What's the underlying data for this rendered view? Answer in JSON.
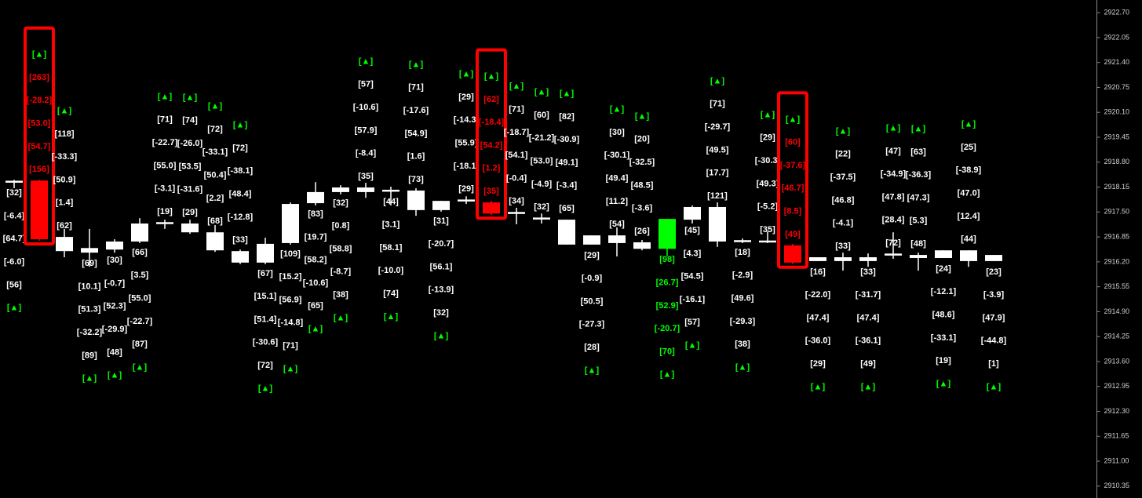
{
  "chart_data": {
    "type": "candlestick",
    "ylim": [
      2910.04,
      2923.03
    ],
    "yticks": [
      {
        "value": 2922.7,
        "label": "2922.70"
      },
      2922.05,
      {
        "value": 2921.4,
        "label": "2921.40"
      },
      2920.75,
      {
        "value": 2920.1,
        "label": "2920.10"
      },
      2919.45,
      {
        "value": 2918.8,
        "label": "2918.80"
      },
      2918.15,
      {
        "value": 2917.5,
        "label": "2917.50"
      },
      2916.85,
      {
        "value": 2916.2,
        "label": "2916.20"
      },
      2915.55,
      {
        "value": 2914.9,
        "label": "2914.90"
      },
      2914.25,
      {
        "value": 2913.6,
        "label": "2913.60"
      },
      2912.95,
      {
        "value": 2912.3,
        "label": "2912.30"
      },
      2911.65,
      {
        "value": 2911.0,
        "label": "2911.00"
      },
      2910.35
    ],
    "body_color": "#ffffff",
    "label_color": "#ffffff",
    "arrow_label": "[▲]",
    "arrow_color": "#00ff00",
    "highlight_color": "#ff0000",
    "candles": [
      {
        "o": 2918.28,
        "h": 2918.34,
        "l": 2918.12,
        "c": 2918.3,
        "side": "below",
        "labels": [
          "[32]",
          "[-6.4]",
          "[64.7]",
          "[-6.0]",
          "[56]"
        ]
      },
      {
        "o": 2918.32,
        "h": 2918.34,
        "l": 2916.75,
        "c": 2916.79,
        "side": "above",
        "color": "#ff0000",
        "label_color": "#ff0000",
        "highlight": true,
        "labels": [
          "[156]",
          "[54.7]",
          "[53.0]",
          "[-28.2]",
          "[263]"
        ]
      },
      {
        "o": 2916.48,
        "h": 2917.06,
        "l": 2916.32,
        "c": 2916.85,
        "side": "above",
        "labels": [
          "[62]",
          "[1.4]",
          "[50.9]",
          "[-33.3]",
          "[118]"
        ]
      },
      {
        "o": 2916.44,
        "h": 2917.06,
        "l": 2916.07,
        "c": 2916.56,
        "side": "below",
        "labels": [
          "[69]",
          "[10.1]",
          "[51.3]",
          "[-32.2]",
          "[89]"
        ]
      },
      {
        "o": 2916.52,
        "h": 2916.79,
        "l": 2916.44,
        "c": 2916.73,
        "side": "below",
        "labels": [
          "[30]",
          "[-0.7]",
          "[52.3]",
          "[-29.9]",
          "[48]"
        ]
      },
      {
        "o": 2916.73,
        "h": 2917.34,
        "l": 2916.69,
        "c": 2917.2,
        "side": "below",
        "labels": [
          "[66]",
          "[3.5]",
          "[55.0]",
          "[-22.7]",
          "[87]"
        ]
      },
      {
        "o": 2917.2,
        "h": 2917.3,
        "l": 2917.06,
        "c": 2917.22,
        "side": "above",
        "labels": [
          "[19]",
          "[-3.1]",
          "[55.0]",
          "[-22.7]",
          "[71]"
        ]
      },
      {
        "o": 2916.97,
        "h": 2917.3,
        "l": 2916.93,
        "c": 2917.2,
        "side": "above",
        "labels": [
          "[29]",
          "[-31.6]",
          "[53.5]",
          "[-26.0]",
          "[74]"
        ]
      },
      {
        "o": 2916.5,
        "h": 2917.16,
        "l": 2916.46,
        "c": 2916.97,
        "side": "above",
        "labels": [
          "[68]",
          "[2.2]",
          "[50.4]",
          "[-33.1]",
          "[72]"
        ]
      },
      {
        "o": 2916.18,
        "h": 2916.52,
        "l": 2916.14,
        "c": 2916.48,
        "side": "above",
        "labels": [
          "[33]",
          "[-12.8]",
          "[48.4]",
          "[-38.1]",
          "[72]"
        ]
      },
      {
        "o": 2916.18,
        "h": 2916.83,
        "l": 2916.14,
        "c": 2916.67,
        "side": "below",
        "labels": [
          "[67]",
          "[15.1]",
          "[51.4]",
          "[-30.6]",
          "[72]"
        ]
      },
      {
        "o": 2916.69,
        "h": 2917.75,
        "l": 2916.65,
        "c": 2917.71,
        "side": "below",
        "labels": [
          "[109]",
          "[15.2]",
          "[56.9]",
          "[-14.8]",
          "[71]"
        ]
      },
      {
        "o": 2917.73,
        "h": 2918.28,
        "l": 2917.67,
        "c": 2918.02,
        "side": "below",
        "labels": [
          "[83]",
          "[19.7]",
          "[58.2]",
          "[-10.6]",
          "[65]"
        ]
      },
      {
        "o": 2918.02,
        "h": 2918.2,
        "l": 2917.96,
        "c": 2918.14,
        "side": "below",
        "labels": [
          "[32]",
          "[0.8]",
          "[58.8]",
          "[-8.7]",
          "[38]"
        ]
      },
      {
        "o": 2918.02,
        "h": 2918.26,
        "l": 2917.87,
        "c": 2918.14,
        "side": "above",
        "labels": [
          "[35]",
          "[-8.4]",
          "[57.9]",
          "[-10.6]",
          "[57]"
        ]
      },
      {
        "o": 2918.05,
        "h": 2918.16,
        "l": 2917.67,
        "c": 2918.06,
        "side": "below",
        "labels": [
          "[44]",
          "[3.1]",
          "[58.1]",
          "[-10.0]",
          "[74]"
        ]
      },
      {
        "o": 2917.55,
        "h": 2918.12,
        "l": 2917.4,
        "c": 2918.06,
        "side": "above",
        "labels": [
          "[73]",
          "[1.6]",
          "[54.9]",
          "[-17.6]",
          "[71]"
        ]
      },
      {
        "o": 2917.55,
        "h": 2917.79,
        "l": 2917.51,
        "c": 2917.79,
        "side": "below",
        "labels": [
          "[31]",
          "[-20.7]",
          "[56.1]",
          "[-13.9]",
          "[32]"
        ]
      },
      {
        "o": 2917.79,
        "h": 2917.91,
        "l": 2917.71,
        "c": 2917.81,
        "side": "above",
        "labels": [
          "[29]",
          "[-18.1]",
          "[55.9]",
          "[-14.3]",
          "[29]"
        ]
      },
      {
        "o": 2917.75,
        "h": 2917.79,
        "l": 2917.42,
        "c": 2917.46,
        "side": "above",
        "color": "#ff0000",
        "label_color": "#ff0000",
        "highlight": true,
        "labels": [
          "[35]",
          "[1.2]",
          "[54.2]",
          "[-18.4]",
          "[62]"
        ]
      },
      {
        "o": 2917.46,
        "h": 2917.61,
        "l": 2917.18,
        "c": 2917.49,
        "side": "above",
        "labels": [
          "[34]",
          "[-0.4]",
          "[54.1]",
          "[-18.7]",
          "[71]"
        ]
      },
      {
        "o": 2917.32,
        "h": 2917.46,
        "l": 2917.2,
        "c": 2917.34,
        "side": "above",
        "labels": [
          "[32]",
          "[-4.9]",
          "[53.0]",
          "[-21.2]",
          "[60]"
        ]
      },
      {
        "o": 2916.65,
        "h": 2917.3,
        "l": 2916.65,
        "c": 2917.3,
        "side": "above",
        "labels": [
          "[65]",
          "[-3.4]",
          "[49.1]",
          "[-30.9]",
          "[82]"
        ]
      },
      {
        "o": 2916.65,
        "h": 2916.89,
        "l": 2916.65,
        "c": 2916.89,
        "side": "below",
        "labels": [
          "[29]",
          "[-0.9]",
          "[50.5]",
          "[-27.3]",
          "[28]"
        ]
      },
      {
        "o": 2916.69,
        "h": 2917.1,
        "l": 2916.34,
        "c": 2916.89,
        "side": "above",
        "labels": [
          "[54]",
          "[11.2]",
          "[49.4]",
          "[-30.1]",
          "[30]"
        ]
      },
      {
        "o": 2916.54,
        "h": 2916.77,
        "l": 2916.5,
        "c": 2916.71,
        "side": "above",
        "labels": [
          "[26]",
          "[-3.6]",
          "[48.5]",
          "[-32.5]",
          "[20]"
        ]
      },
      {
        "o": 2916.54,
        "h": 2917.32,
        "l": 2916.34,
        "c": 2917.32,
        "side": "below",
        "color": "#00ff00",
        "label_color": "#00ff00",
        "labels": [
          "[98]",
          "[26.7]",
          "[52.9]",
          "[-20.7]",
          "[70]"
        ]
      },
      {
        "o": 2917.3,
        "h": 2917.67,
        "l": 2917.2,
        "c": 2917.63,
        "side": "below",
        "labels": [
          "[45]",
          "[4.3]",
          "[54.5]",
          "[-16.1]",
          "[57]"
        ]
      },
      {
        "o": 2916.73,
        "h": 2917.75,
        "l": 2916.59,
        "c": 2917.63,
        "side": "above",
        "labels": [
          "[121]",
          "[17.7]",
          "[49.5]",
          "[-29.7]",
          "[71]"
        ]
      },
      {
        "o": 2916.73,
        "h": 2916.81,
        "l": 2916.69,
        "c": 2916.75,
        "side": "below",
        "labels": [
          "[18]",
          "[-2.9]",
          "[49.6]",
          "[-29.3]",
          "[38]"
        ]
      },
      {
        "o": 2916.71,
        "h": 2916.99,
        "l": 2916.69,
        "c": 2916.75,
        "side": "above",
        "labels": [
          "[35]",
          "[-5.2]",
          "[49.3]",
          "[-30.3]",
          "[29]"
        ]
      },
      {
        "o": 2916.63,
        "h": 2916.67,
        "l": 2916.14,
        "c": 2916.18,
        "side": "above",
        "color": "#ff0000",
        "label_color": "#ff0000",
        "highlight": true,
        "labels": [
          "[49]",
          "[8.5]",
          "[46.7]",
          "[-37.6]",
          "[60]"
        ]
      },
      {
        "o": 2916.22,
        "h": 2916.32,
        "l": 2916.22,
        "c": 2916.32,
        "side": "below",
        "labels": [
          "[16]",
          "[-22.0]",
          "[47.4]",
          "[-36.0]",
          "[29]"
        ]
      },
      {
        "o": 2916.22,
        "h": 2916.44,
        "l": 2915.97,
        "c": 2916.32,
        "side": "above",
        "labels": [
          "[33]",
          "[-4.1]",
          "[46.8]",
          "[-37.5]",
          "[22]"
        ]
      },
      {
        "o": 2916.22,
        "h": 2916.42,
        "l": 2916.07,
        "c": 2916.32,
        "side": "below",
        "labels": [
          "[33]",
          "[-31.7]",
          "[47.4]",
          "[-36.1]",
          "[49]"
        ]
      },
      {
        "o": 2916.38,
        "h": 2916.97,
        "l": 2916.28,
        "c": 2916.4,
        "side": "above",
        "labels": [
          "[72]",
          "[28.4]",
          "[47.8]",
          "[-34.9]",
          "[47]"
        ]
      },
      {
        "o": 2916.3,
        "h": 2916.44,
        "l": 2915.97,
        "c": 2916.38,
        "side": "above",
        "labels": [
          "[48]",
          "[5.3]",
          "[47.3]",
          "[-36.3]",
          "[63]"
        ]
      },
      {
        "o": 2916.3,
        "h": 2916.5,
        "l": 2916.3,
        "c": 2916.5,
        "side": "below",
        "labels": [
          "[24]",
          "[-12.1]",
          "[48.6]",
          "[-33.1]",
          "[19]"
        ]
      },
      {
        "o": 2916.22,
        "h": 2916.5,
        "l": 2916.07,
        "c": 2916.5,
        "side": "above",
        "labels": [
          "[44]",
          "[12.4]",
          "[47.0]",
          "[-38.9]",
          "[25]"
        ]
      },
      {
        "o": 2916.22,
        "h": 2916.38,
        "l": 2916.22,
        "c": 2916.38,
        "side": "below",
        "labels": [
          "[23]",
          "[-3.9]",
          "[47.9]",
          "[-44.8]",
          "[1]"
        ]
      }
    ]
  }
}
